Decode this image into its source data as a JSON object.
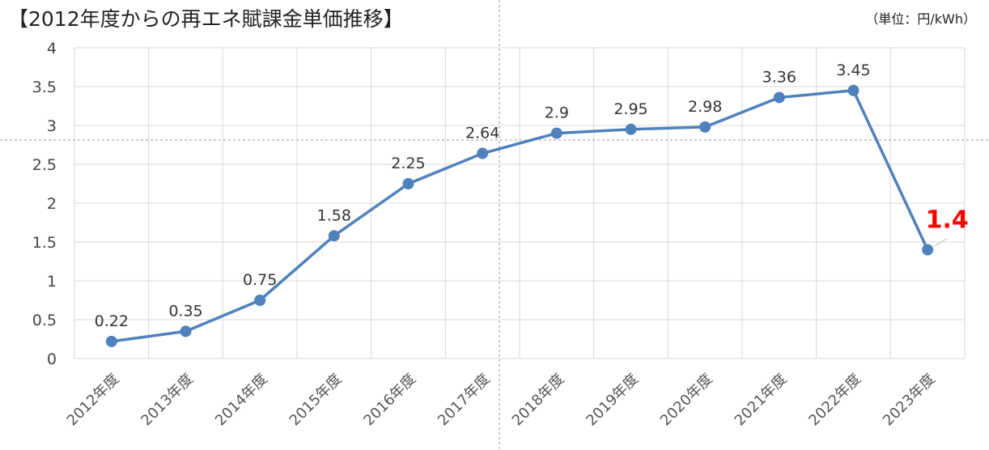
{
  "header": {
    "title": "【2012年度からの再エネ賦課金単価推移】",
    "unit": "（単位：円/kWh）"
  },
  "chart_data": {
    "type": "line",
    "title": "【2012年度からの再エネ賦課金単価推移】",
    "unit_label": "（単位：円/kWh）",
    "xlabel": "",
    "ylabel": "",
    "categories": [
      "2012年度",
      "2013年度",
      "2014年度",
      "2015年度",
      "2016年度",
      "2017年度",
      "2018年度",
      "2019年度",
      "2020年度",
      "2021年度",
      "2022年度",
      "2023年度"
    ],
    "series": [
      {
        "values": [
          0.22,
          0.35,
          0.75,
          1.58,
          2.25,
          2.64,
          2.9,
          2.95,
          2.98,
          3.36,
          3.45,
          1.4
        ],
        "labels": [
          "0.22",
          "0.35",
          "0.75",
          "1.58",
          "2.25",
          "2.64",
          "2.9",
          "2.95",
          "2.98",
          "3.36",
          "3.45",
          "1.4"
        ],
        "color": "#4f81bd"
      }
    ],
    "highlight_index": 11,
    "highlight_color": "#ff0000",
    "ylim": [
      0,
      4
    ],
    "yticks": [
      0,
      0.5,
      1,
      1.5,
      2,
      2.5,
      3,
      3.5,
      4
    ],
    "ytick_labels": [
      "0",
      "0.5",
      "1",
      "1.5",
      "2",
      "2.5",
      "3",
      "3.5",
      "4"
    ],
    "grid": true,
    "legend": "none"
  }
}
